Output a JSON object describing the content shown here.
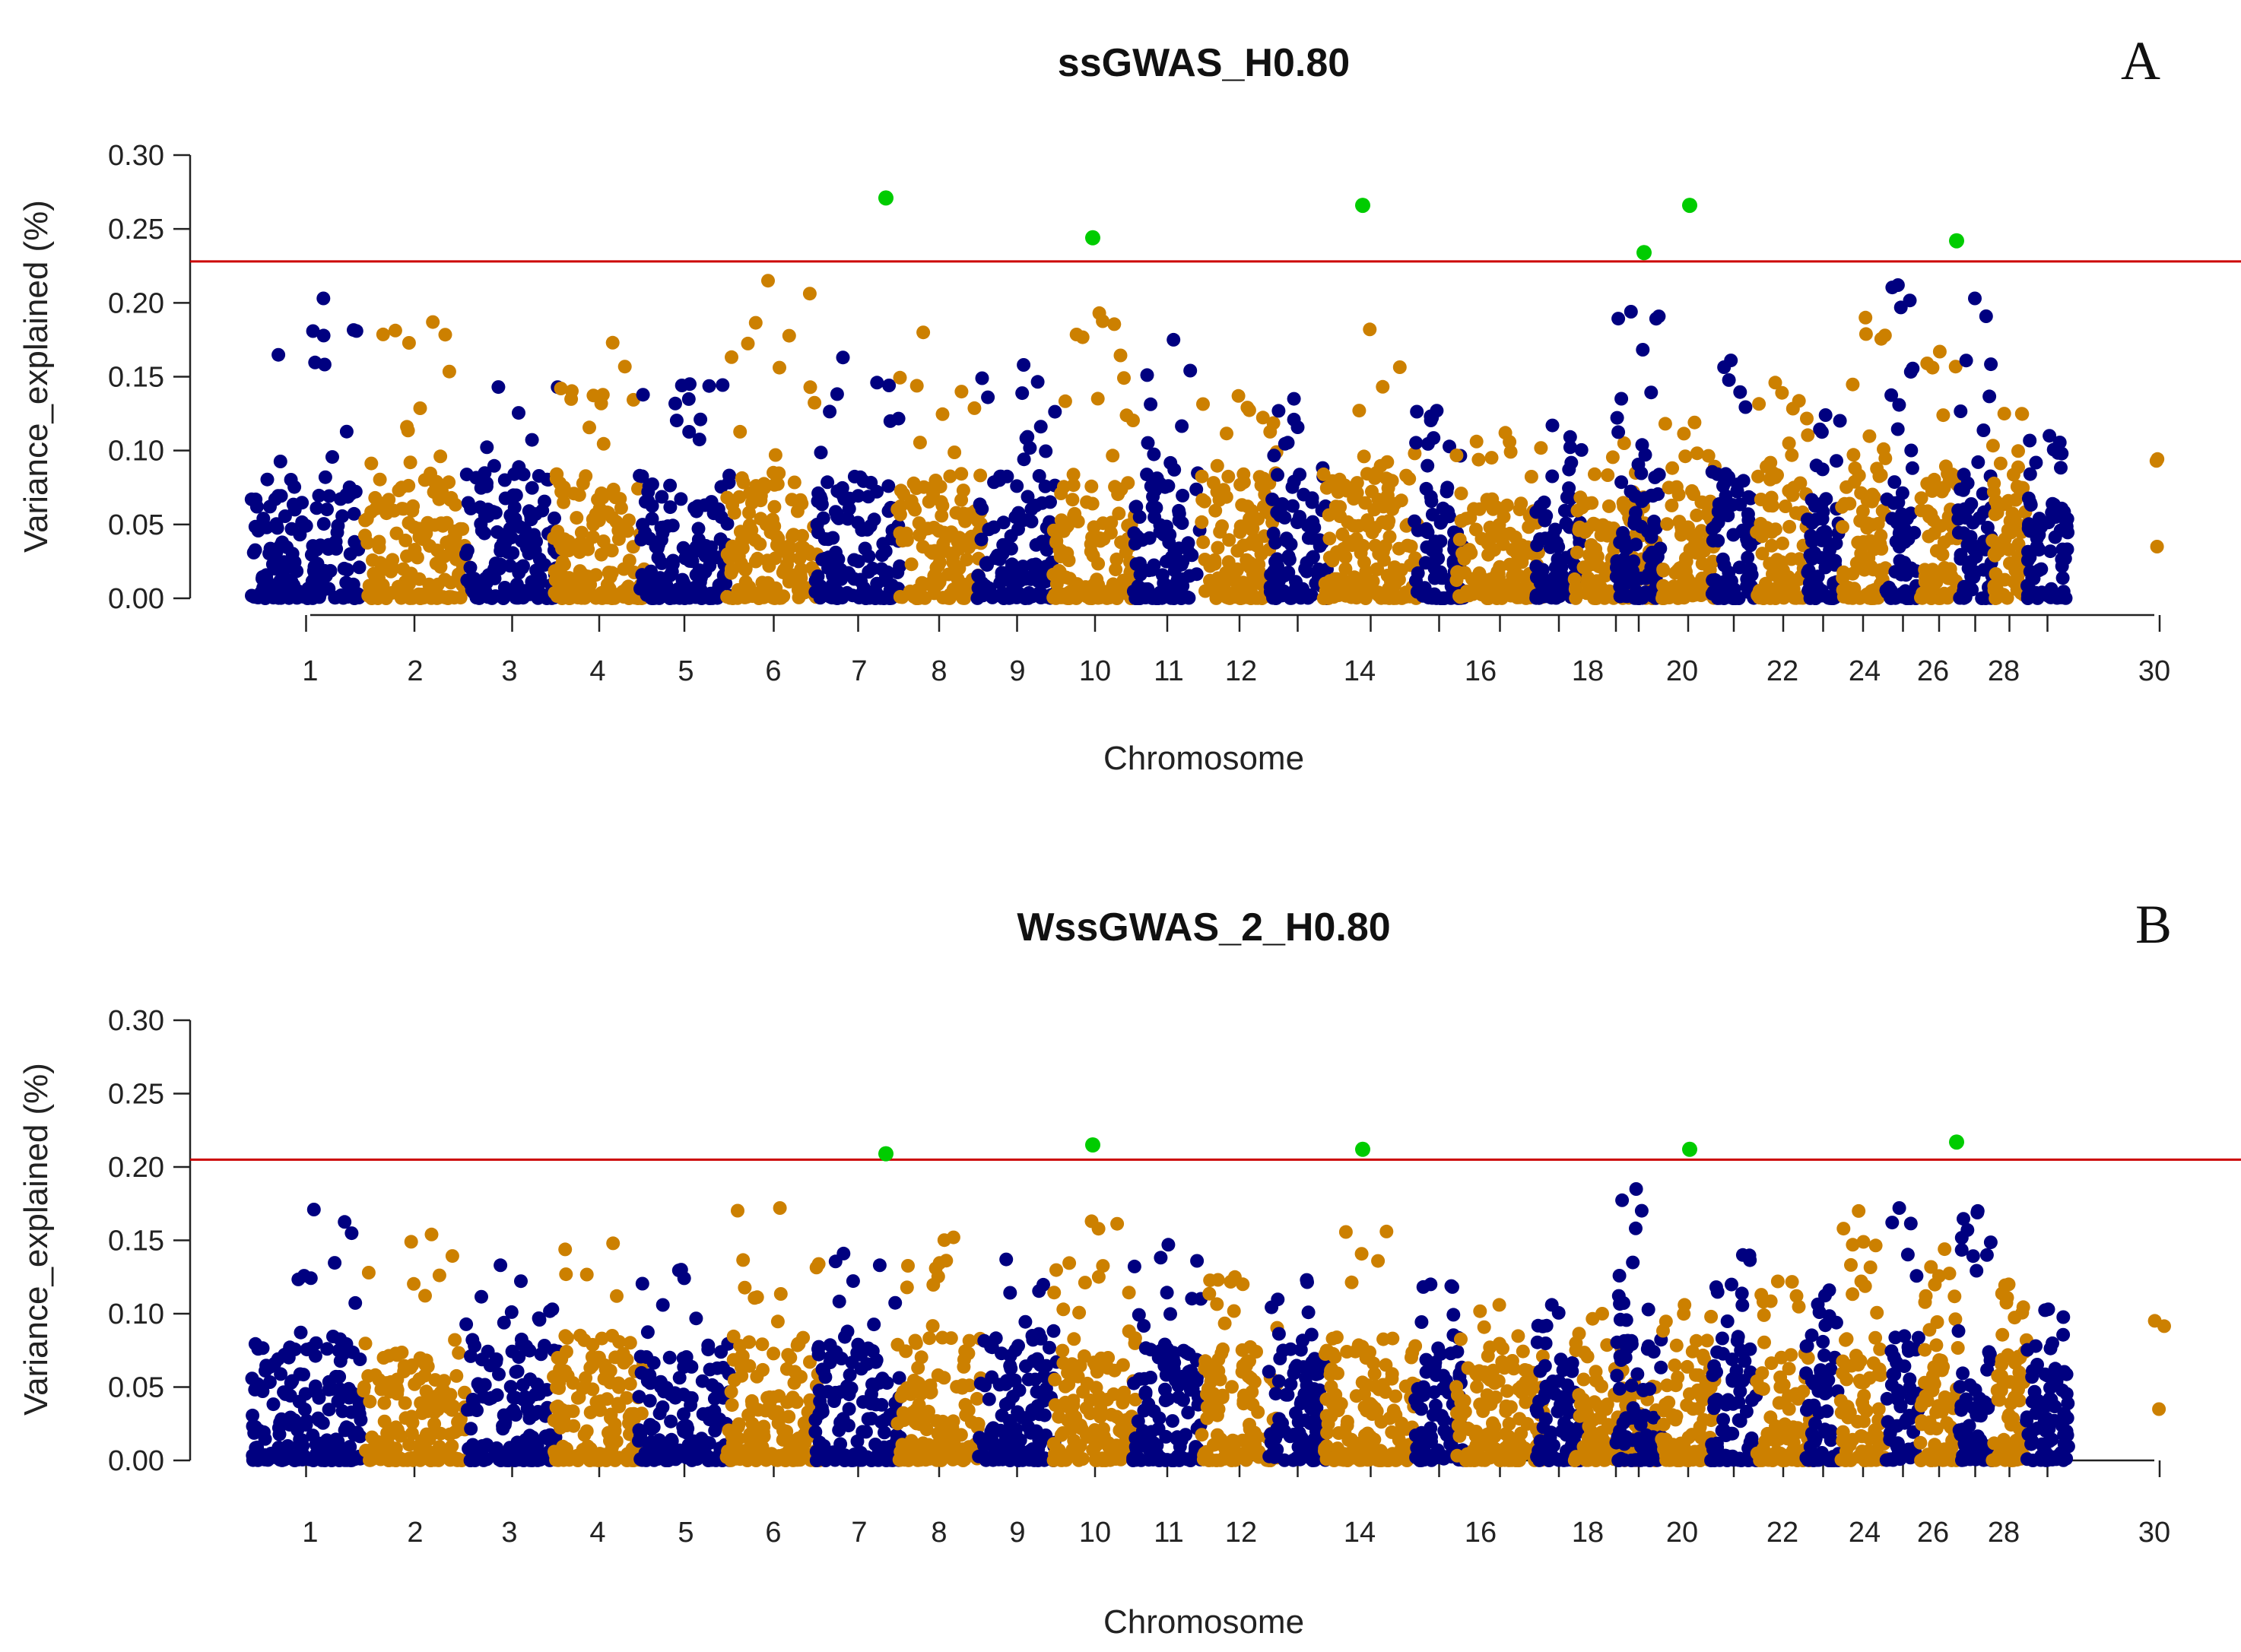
{
  "chart_data": [
    {
      "type": "scatter",
      "subtype": "manhattan",
      "panel_label": "A",
      "title": "ssGWAS_H0.80",
      "xlabel": "Chromosome",
      "ylabel": "Variance_explained (%)",
      "ylim": [
        0,
        0.3
      ],
      "yticks": [
        "0.00",
        "0.05",
        "0.10",
        "0.15",
        "0.20",
        "0.25",
        "0.30"
      ],
      "xticks": [
        "1",
        "2",
        "3",
        "4",
        "5",
        "6",
        "7",
        "8",
        "9",
        "10",
        "11",
        "12",
        "14",
        "16",
        "18",
        "20",
        "22",
        "24",
        "26",
        "28",
        "30"
      ],
      "threshold": 0.228,
      "colors": {
        "odd": "#000080",
        "even": "#CC8000",
        "significant": "#00CC00",
        "threshold": "#CC0000"
      },
      "chromosome_max": [
        0.203,
        0.187,
        0.143,
        0.173,
        0.145,
        0.215,
        0.163,
        0.18,
        0.158,
        0.193,
        0.175,
        0.137,
        0.135,
        0.182,
        0.127,
        0.112,
        0.117,
        0.105,
        0.194,
        0.119,
        0.161,
        0.146,
        0.124,
        0.19,
        0.212,
        0.167,
        0.203,
        0.125,
        0.11,
        0.098
      ],
      "significant_snps": [
        {
          "chromosome": 7,
          "value": 0.271
        },
        {
          "chromosome": 10,
          "value": 0.244
        },
        {
          "chromosome": 14,
          "value": 0.266
        },
        {
          "chromosome": 19,
          "value": 0.234
        },
        {
          "chromosome": 20,
          "value": 0.266
        },
        {
          "chromosome": 26,
          "value": 0.242
        }
      ]
    },
    {
      "type": "scatter",
      "subtype": "manhattan",
      "panel_label": "B",
      "title": "WssGWAS_2_H0.80",
      "xlabel": "Chromosome",
      "ylabel": "Variance_explained (%)",
      "ylim": [
        0,
        0.3
      ],
      "yticks": [
        "0.00",
        "0.05",
        "0.10",
        "0.15",
        "0.20",
        "0.25",
        "0.30"
      ],
      "xticks": [
        "1",
        "2",
        "3",
        "4",
        "5",
        "6",
        "7",
        "8",
        "9",
        "10",
        "11",
        "12",
        "14",
        "16",
        "18",
        "20",
        "22",
        "24",
        "26",
        "28",
        "30"
      ],
      "threshold": 0.205,
      "colors": {
        "odd": "#000080",
        "even": "#CC8000",
        "significant": "#00CC00",
        "threshold": "#CC0000"
      },
      "chromosome_max": [
        0.171,
        0.154,
        0.133,
        0.148,
        0.13,
        0.172,
        0.141,
        0.152,
        0.137,
        0.163,
        0.147,
        0.125,
        0.123,
        0.156,
        0.12,
        0.106,
        0.106,
        0.1,
        0.185,
        0.106,
        0.14,
        0.122,
        0.116,
        0.17,
        0.172,
        0.144,
        0.17,
        0.12,
        0.103,
        0.097
      ],
      "significant_snps": [
        {
          "chromosome": 7,
          "value": 0.209
        },
        {
          "chromosome": 10,
          "value": 0.215
        },
        {
          "chromosome": 14,
          "value": 0.212
        },
        {
          "chromosome": 20,
          "value": 0.212
        },
        {
          "chromosome": 26,
          "value": 0.217
        }
      ]
    }
  ]
}
